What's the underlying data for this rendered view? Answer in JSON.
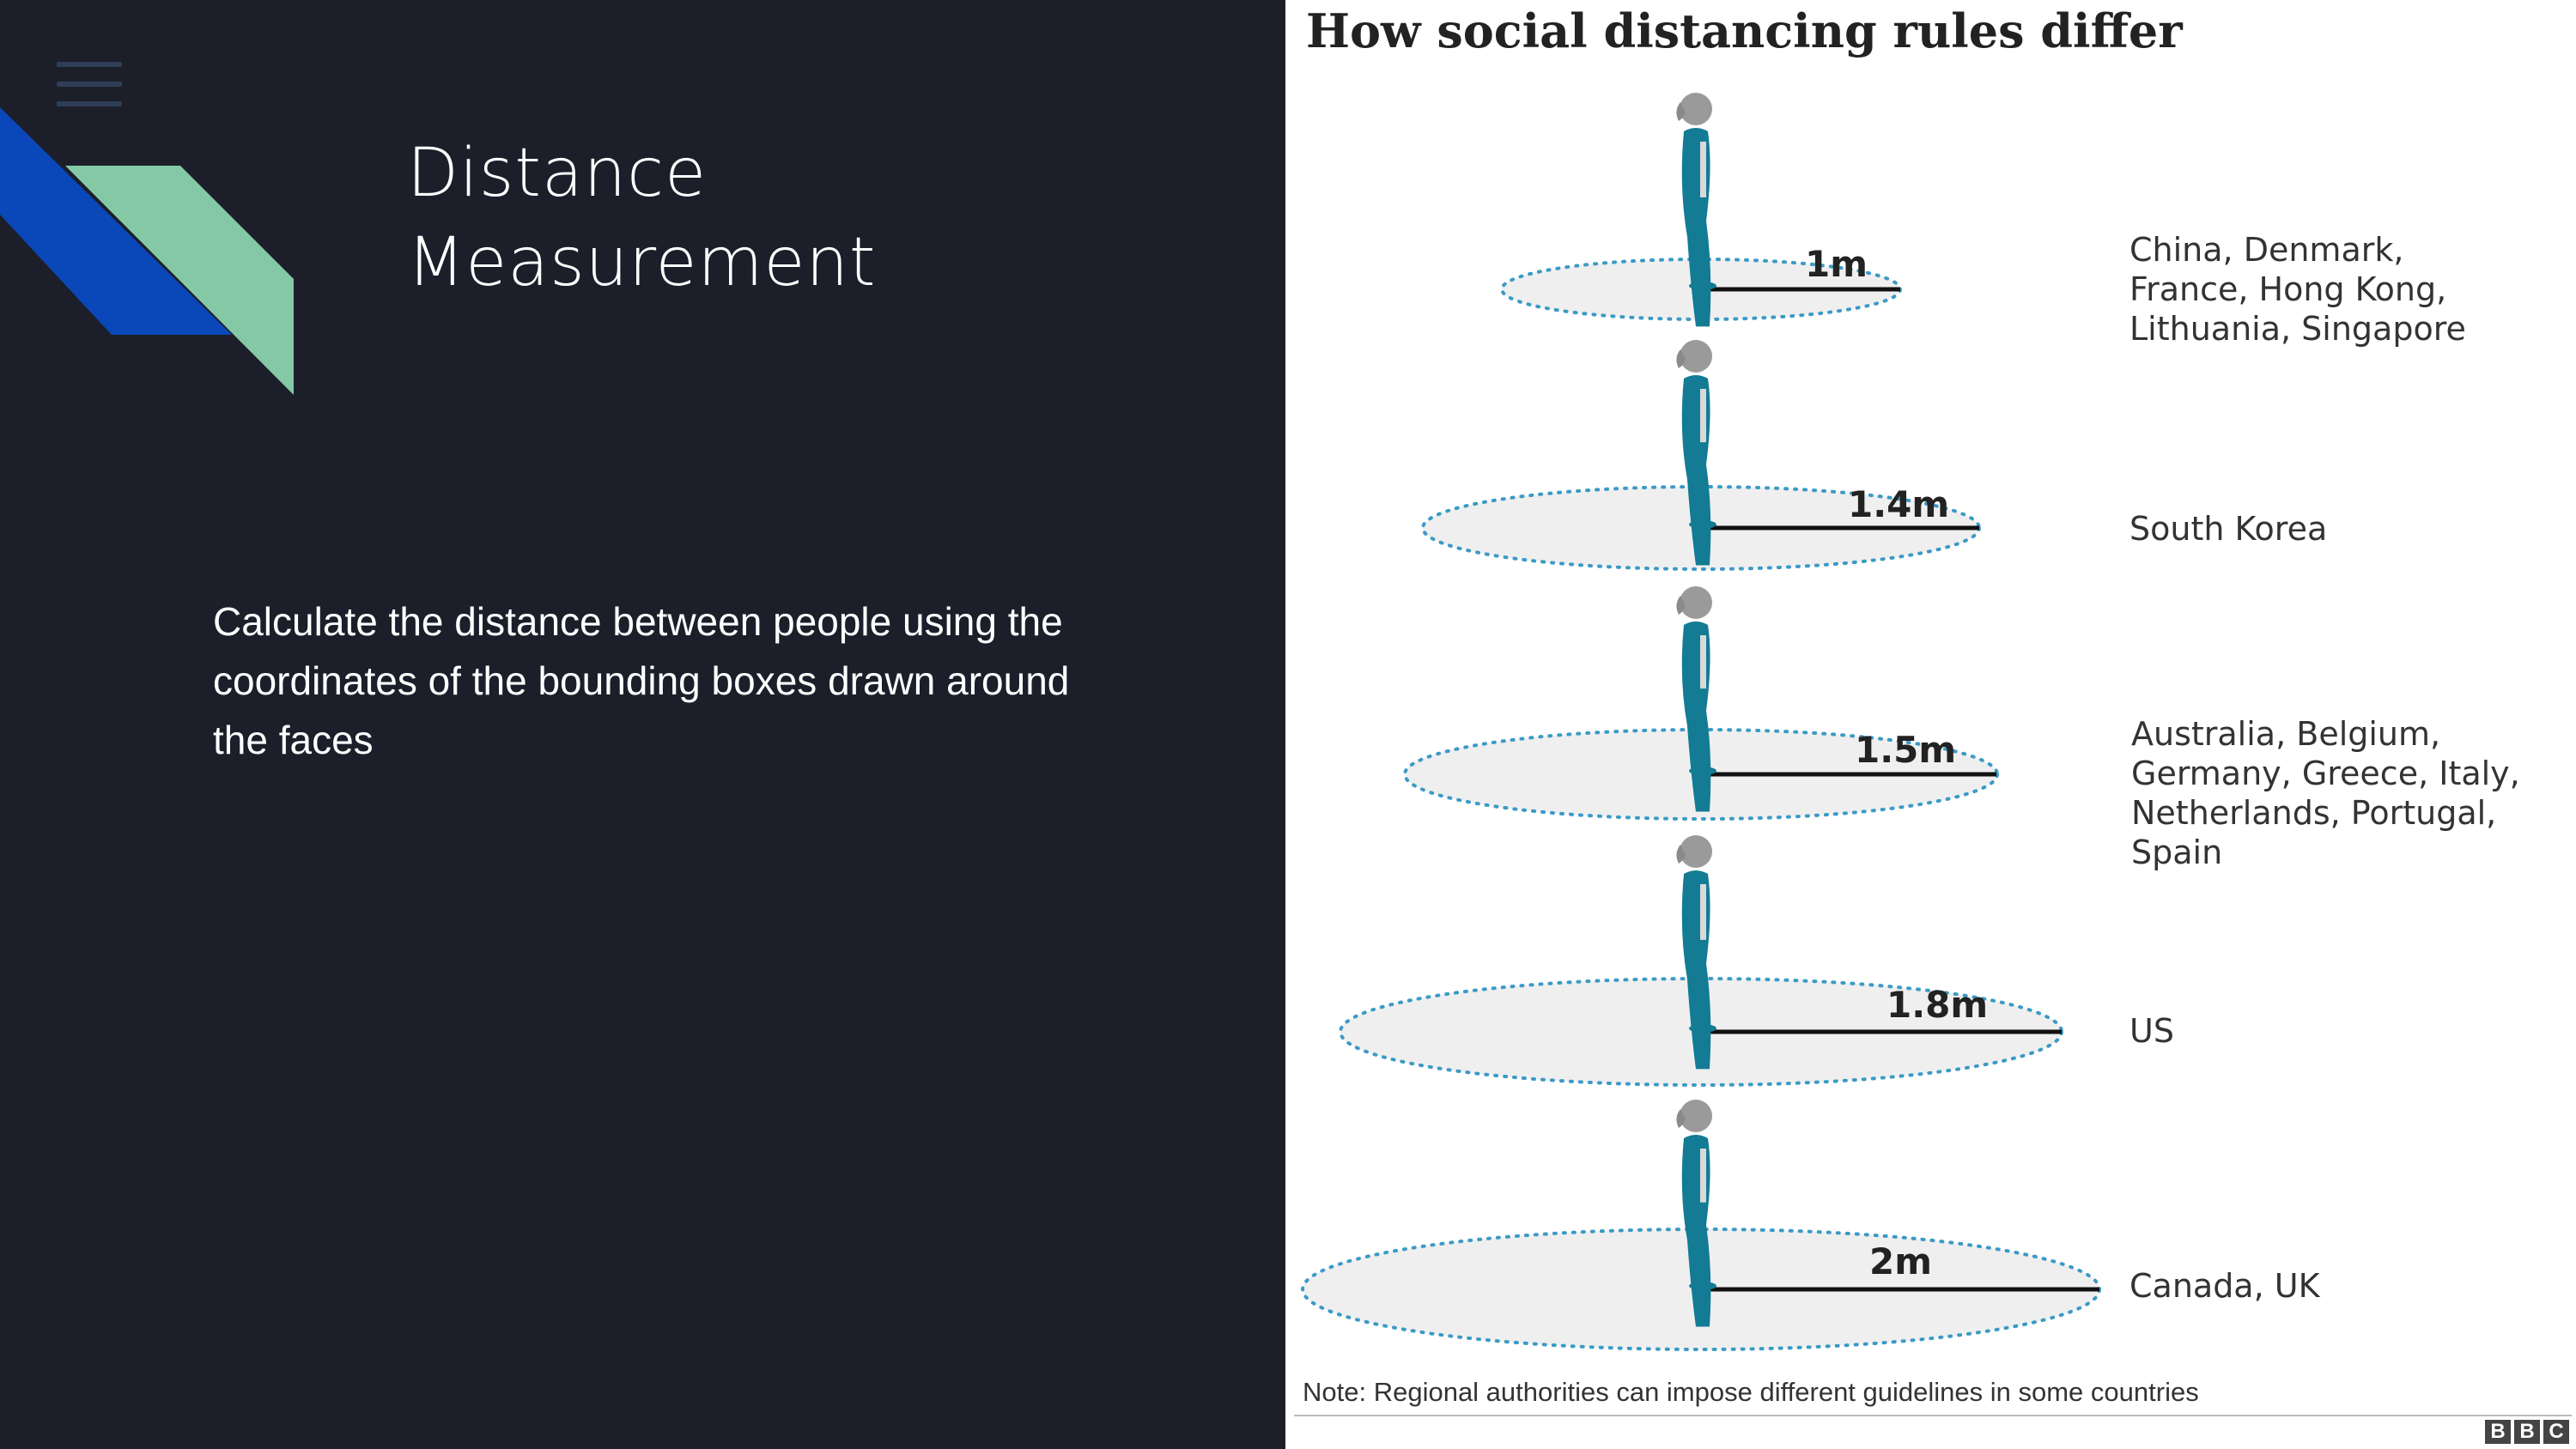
{
  "slide": {
    "title_line1": "Distance",
    "title_line2": "Measurement",
    "description": "Calculate the distance between people using the coordinates of the bounding boxes drawn around the faces"
  },
  "colors": {
    "background": "#1c1f2a",
    "accent_blue": "#0a47b8",
    "accent_green": "#85c8a6",
    "figure_teal": "#137b94"
  },
  "infographic": {
    "title": "How social distancing rules differ",
    "rows": [
      {
        "distance": "1m",
        "countries": [
          "China, Denmark,",
          "France, Hong Kong,",
          "Lithuania, Singapore"
        ]
      },
      {
        "distance": "1.4m",
        "countries": [
          "South Korea"
        ]
      },
      {
        "distance": "1.5m",
        "countries": [
          "Australia, Belgium,",
          "Germany, Greece, Italy,",
          "Netherlands, Portugal,",
          "Spain"
        ]
      },
      {
        "distance": "1.8m",
        "countries": [
          "US"
        ]
      },
      {
        "distance": "2m",
        "countries": [
          "Canada, UK"
        ]
      }
    ],
    "note": "Note: Regional authorities can impose different guidelines in some countries",
    "source_logo": [
      "B",
      "B",
      "C"
    ]
  }
}
